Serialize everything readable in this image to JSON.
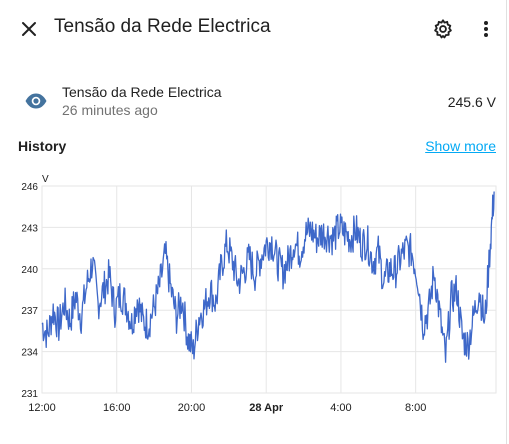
{
  "header": {
    "title": "Tensão da Rede Electrica",
    "icons": {
      "close": "close-icon",
      "settings": "gear-icon",
      "more": "more-vert-icon"
    }
  },
  "entity": {
    "icon": "eye-icon",
    "name": "Tensão da Rede Electrica",
    "last_changed": "26 minutes ago",
    "state": "245.6 V"
  },
  "history": {
    "title": "History",
    "show_more": "Show more"
  },
  "colors": {
    "accent": "#03a9f4",
    "line": "#3e68c9",
    "icon": "#44739e"
  },
  "chart_data": {
    "type": "line",
    "ylabel": "V",
    "ylim": [
      231,
      246
    ],
    "yticks": [
      "231",
      "234",
      "237",
      "240",
      "243",
      "246"
    ],
    "xlim": [
      12,
      36.3
    ],
    "xticks": [
      {
        "x": 12,
        "label": "12:00",
        "bold": false
      },
      {
        "x": 16,
        "label": "16:00",
        "bold": false
      },
      {
        "x": 20,
        "label": "20:00",
        "bold": false
      },
      {
        "x": 24,
        "label": "28 Apr",
        "bold": true
      },
      {
        "x": 28,
        "label": "4:00",
        "bold": false
      },
      {
        "x": 32,
        "label": "8:00",
        "bold": false
      }
    ],
    "grid": true,
    "series": [
      {
        "x": [
          12,
          12.3,
          12.6,
          12.9,
          13.2,
          13.5,
          13.8,
          14.1,
          14.4,
          14.7,
          15.0,
          15.3,
          15.6,
          15.9,
          16.2,
          16.5,
          16.8,
          17.1,
          17.4,
          17.7,
          18.0,
          18.3,
          18.6,
          18.9,
          19.2,
          19.5,
          19.8,
          20.1,
          20.4,
          20.7,
          21.0,
          21.3,
          21.6,
          21.9,
          22.2,
          22.5,
          22.8,
          23.1,
          23.4,
          23.7,
          24.0,
          24.3,
          24.6,
          24.9,
          25.2,
          25.5,
          25.8,
          26.1,
          26.4,
          26.7,
          27.0,
          27.3,
          27.6,
          27.9,
          28.2,
          28.5,
          28.8,
          29.1,
          29.4,
          29.7,
          30.0,
          30.3,
          30.6,
          30.9,
          31.2,
          31.5,
          31.8,
          32.1,
          32.4,
          32.7,
          33.0,
          33.3,
          33.6,
          33.9,
          34.2,
          34.5,
          34.8,
          35.1,
          35.4,
          35.7,
          36.0,
          36.2
        ],
        "y": [
          236.0,
          235.2,
          237.0,
          235.8,
          237.5,
          236.2,
          238.0,
          236.5,
          238.8,
          240.5,
          237.5,
          238.5,
          239.5,
          237.0,
          238.2,
          237.5,
          236.0,
          237.8,
          236.2,
          236.0,
          237.2,
          238.8,
          241.0,
          238.5,
          236.5,
          237.8,
          235.0,
          234.0,
          236.5,
          237.2,
          238.5,
          237.5,
          240.2,
          241.8,
          240.5,
          239.0,
          239.8,
          240.8,
          239.6,
          240.8,
          241.8,
          242.0,
          240.5,
          239.8,
          240.6,
          242.0,
          241.2,
          242.5,
          242.8,
          242.2,
          242.6,
          242.5,
          242.2,
          243.0,
          242.6,
          242.2,
          242.8,
          241.8,
          242.0,
          240.5,
          241.2,
          239.0,
          240.0,
          239.8,
          240.8,
          241.5,
          241.2,
          239.5,
          236.0,
          237.0,
          239.8,
          236.5,
          233.5,
          237.8,
          238.5,
          235.0,
          234.5,
          236.5,
          238.5,
          236.0,
          242.0,
          245.6
        ]
      }
    ]
  }
}
